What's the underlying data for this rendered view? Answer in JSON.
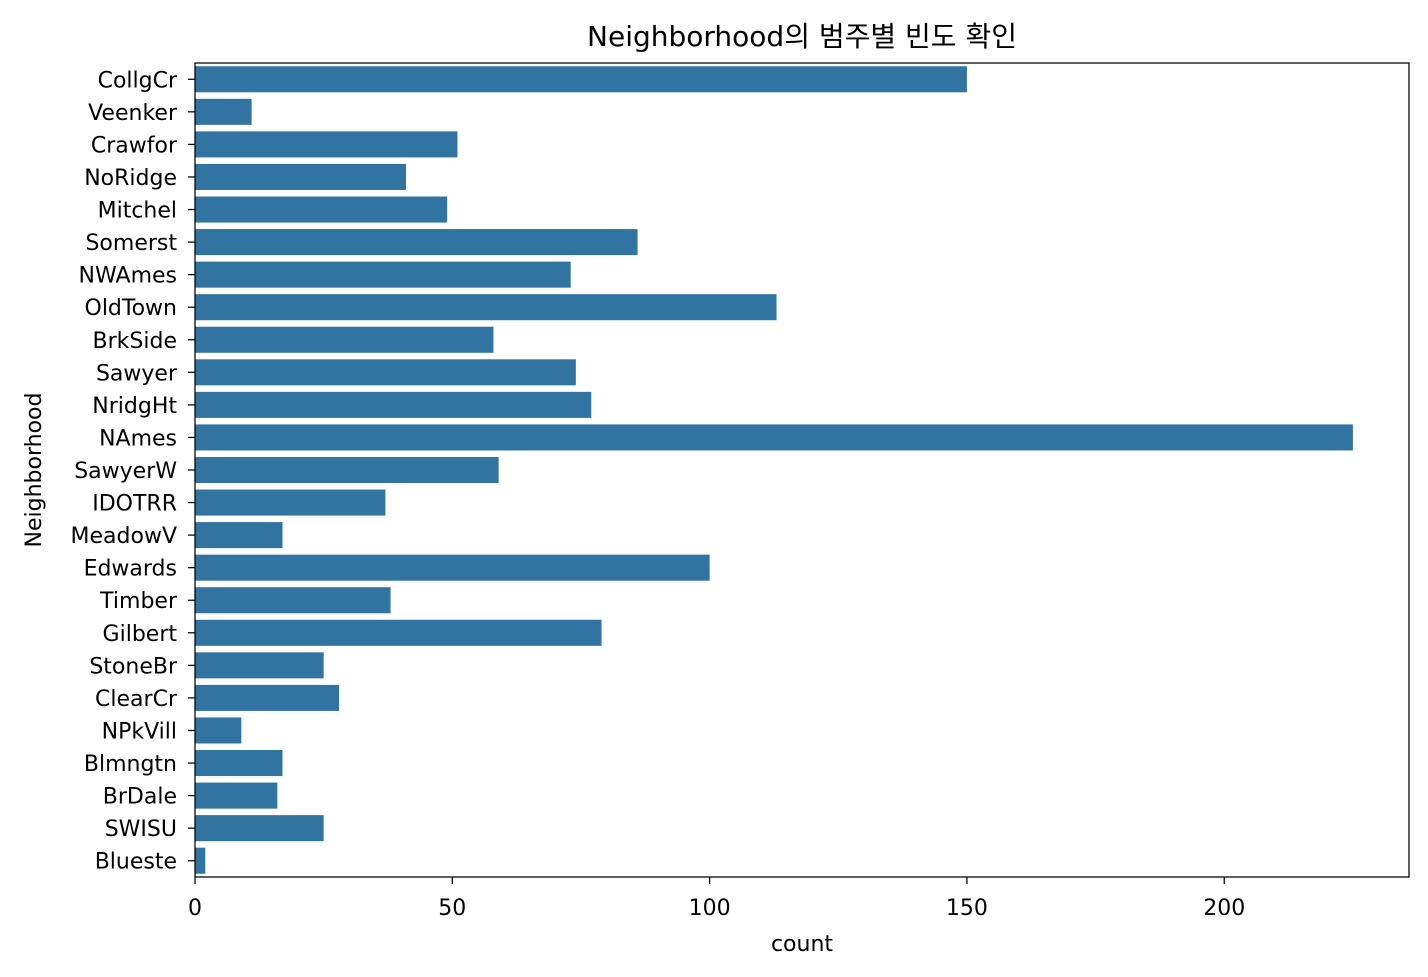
{
  "chart_data": {
    "type": "bar",
    "orientation": "horizontal",
    "title": "Neighborhood의 범주별 빈도 확인",
    "xlabel": "count",
    "ylabel": "Neighborhood",
    "xlim": [
      0,
      235.9
    ],
    "xticks": [
      0,
      50,
      100,
      150,
      200
    ],
    "grid": false,
    "bar_color": "#3274a1",
    "categories": [
      "CollgCr",
      "Veenker",
      "Crawfor",
      "NoRidge",
      "Mitchel",
      "Somerst",
      "NWAmes",
      "OldTown",
      "BrkSide",
      "Sawyer",
      "NridgHt",
      "NAmes",
      "SawyerW",
      "IDOTRR",
      "MeadowV",
      "Edwards",
      "Timber",
      "Gilbert",
      "StoneBr",
      "ClearCr",
      "NPkVill",
      "Blmngtn",
      "BrDale",
      "SWISU",
      "Blueste"
    ],
    "values": [
      150,
      11,
      51,
      41,
      49,
      86,
      73,
      113,
      58,
      74,
      77,
      225,
      59,
      37,
      17,
      100,
      38,
      79,
      25,
      28,
      9,
      17,
      16,
      25,
      2
    ]
  }
}
